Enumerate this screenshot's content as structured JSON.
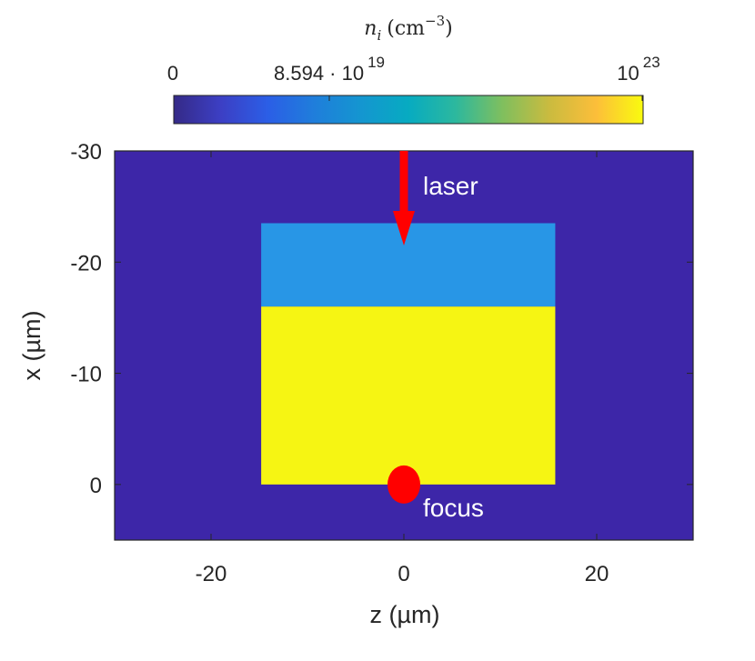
{
  "chart_data": {
    "type": "heatmap",
    "title": "",
    "xlabel": "z (µm)",
    "ylabel": "x (µm)",
    "xlim": [
      -30,
      30
    ],
    "ylim": [
      -30,
      5
    ],
    "y_reversed": true,
    "x_ticks": [
      "-20",
      "0",
      "20"
    ],
    "y_ticks": [
      "-30",
      "-20",
      "-10",
      "0"
    ],
    "x_tick_values": [
      -20,
      0,
      20
    ],
    "y_tick_values": [
      -30,
      -20,
      -10,
      0
    ],
    "background": {
      "value": 0,
      "color": "#3d26a8"
    },
    "regions": [
      {
        "z": [
          -14.8,
          15.7
        ],
        "x": [
          -23.5,
          -16
        ],
        "value": 8.594e+19,
        "color": "#2896e6"
      },
      {
        "z": [
          -14.8,
          15.7
        ],
        "x": [
          -16,
          0
        ],
        "value": 1e+23,
        "color": "#f6f513"
      }
    ],
    "colorbar": {
      "title": "n_i (cm^-3)",
      "title_main": "n",
      "title_sub": "i",
      "title_unit_open": "(cm",
      "title_unit_exp": "−3",
      "title_unit_close": ")",
      "colormap": "parula",
      "tick_values": [
        0,
        8.594e+19,
        1e+23
      ],
      "tick_labels": [
        {
          "main": "0",
          "sup": ""
        },
        {
          "main": "8.594 · 10",
          "sup": "19"
        },
        {
          "main": "10",
          "sup": "23"
        }
      ]
    },
    "annotations": [
      {
        "text": "laser",
        "type": "arrow",
        "from": [
          0,
          -30
        ],
        "to": [
          0,
          -21.5
        ],
        "color": "#ff0000"
      },
      {
        "text": "focus",
        "type": "marker",
        "at": [
          0,
          0
        ],
        "color": "#ff0000"
      }
    ]
  }
}
